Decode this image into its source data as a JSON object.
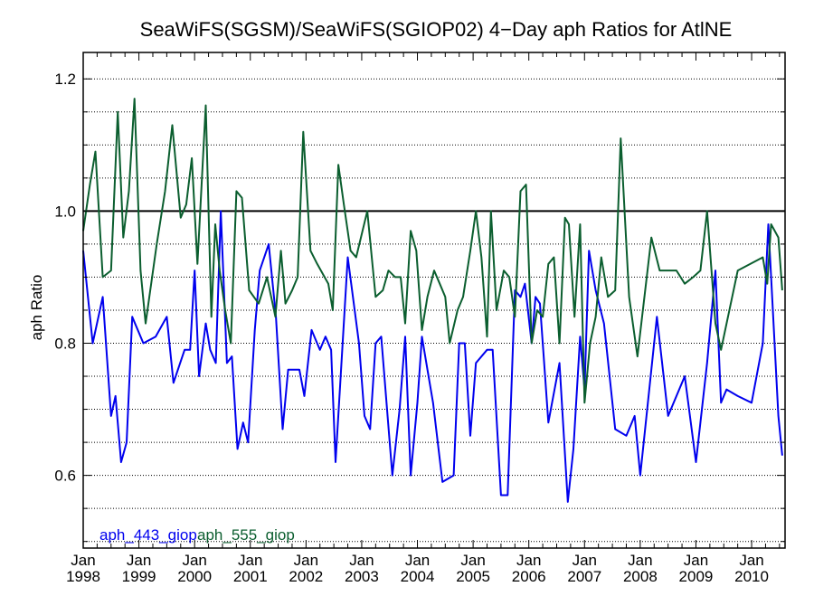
{
  "chart_data": {
    "type": "line",
    "title": "SeaWiFS(SGSM)/SeaWiFS(SGIOP02) 4−Day aph Ratios for AtlNE",
    "xlabel": "",
    "ylabel": "aph Ratio",
    "xlim": [
      1998.0,
      2010.6
    ],
    "ylim": [
      0.49,
      1.24
    ],
    "y_major_ticks": [
      0.6,
      0.8,
      1.0,
      1.2
    ],
    "y_grid_step": 0.05,
    "reference_line": 1.0,
    "grid": true,
    "legend_position": "bottom-left",
    "x_ticks": [
      {
        "x": 1998,
        "month": "Jan",
        "year": "1998"
      },
      {
        "x": 1999,
        "month": "Jan",
        "year": "1999"
      },
      {
        "x": 2000,
        "month": "Jan",
        "year": "2000"
      },
      {
        "x": 2001,
        "month": "Jan",
        "year": "2001"
      },
      {
        "x": 2002,
        "month": "Jan",
        "year": "2002"
      },
      {
        "x": 2003,
        "month": "Jan",
        "year": "2003"
      },
      {
        "x": 2004,
        "month": "Jan",
        "year": "2004"
      },
      {
        "x": 2005,
        "month": "Jan",
        "year": "2005"
      },
      {
        "x": 2006,
        "month": "Jan",
        "year": "2006"
      },
      {
        "x": 2007,
        "month": "Jan",
        "year": "2007"
      },
      {
        "x": 2008,
        "month": "Jan",
        "year": "2008"
      },
      {
        "x": 2009,
        "month": "Jan",
        "year": "2009"
      },
      {
        "x": 2010,
        "month": "Jan",
        "year": "2010"
      }
    ],
    "series": [
      {
        "name": "aph_443_giop",
        "color": "#0000ee",
        "points": [
          [
            1998.0,
            0.94
          ],
          [
            1998.17,
            0.8
          ],
          [
            1998.35,
            0.87
          ],
          [
            1998.5,
            0.69
          ],
          [
            1998.58,
            0.72
          ],
          [
            1998.68,
            0.62
          ],
          [
            1998.78,
            0.65
          ],
          [
            1998.88,
            0.84
          ],
          [
            1999.08,
            0.8
          ],
          [
            1999.3,
            0.81
          ],
          [
            1999.5,
            0.84
          ],
          [
            1999.62,
            0.74
          ],
          [
            1999.82,
            0.79
          ],
          [
            1999.92,
            0.79
          ],
          [
            2000.0,
            0.91
          ],
          [
            2000.08,
            0.75
          ],
          [
            2000.2,
            0.83
          ],
          [
            2000.28,
            0.79
          ],
          [
            2000.38,
            0.77
          ],
          [
            2000.47,
            1.0
          ],
          [
            2000.58,
            0.77
          ],
          [
            2000.67,
            0.78
          ],
          [
            2000.77,
            0.64
          ],
          [
            2000.87,
            0.68
          ],
          [
            2000.96,
            0.65
          ],
          [
            2001.08,
            0.82
          ],
          [
            2001.17,
            0.91
          ],
          [
            2001.33,
            0.95
          ],
          [
            2001.46,
            0.84
          ],
          [
            2001.58,
            0.67
          ],
          [
            2001.68,
            0.76
          ],
          [
            2001.88,
            0.76
          ],
          [
            2001.97,
            0.72
          ],
          [
            2002.1,
            0.82
          ],
          [
            2002.25,
            0.79
          ],
          [
            2002.35,
            0.81
          ],
          [
            2002.45,
            0.79
          ],
          [
            2002.53,
            0.62
          ],
          [
            2002.75,
            0.93
          ],
          [
            2002.95,
            0.8
          ],
          [
            2003.05,
            0.69
          ],
          [
            2003.15,
            0.67
          ],
          [
            2003.25,
            0.8
          ],
          [
            2003.35,
            0.81
          ],
          [
            2003.55,
            0.6
          ],
          [
            2003.68,
            0.7
          ],
          [
            2003.78,
            0.81
          ],
          [
            2003.88,
            0.6
          ],
          [
            2004.0,
            0.71
          ],
          [
            2004.08,
            0.81
          ],
          [
            2004.18,
            0.76
          ],
          [
            2004.28,
            0.71
          ],
          [
            2004.45,
            0.59
          ],
          [
            2004.65,
            0.6
          ],
          [
            2004.75,
            0.8
          ],
          [
            2004.85,
            0.8
          ],
          [
            2004.95,
            0.66
          ],
          [
            2005.05,
            0.77
          ],
          [
            2005.25,
            0.79
          ],
          [
            2005.35,
            0.79
          ],
          [
            2005.5,
            0.57
          ],
          [
            2005.62,
            0.57
          ],
          [
            2005.75,
            0.88
          ],
          [
            2005.85,
            0.87
          ],
          [
            2005.93,
            0.89
          ],
          [
            2006.05,
            0.8
          ],
          [
            2006.12,
            0.87
          ],
          [
            2006.2,
            0.86
          ],
          [
            2006.35,
            0.68
          ],
          [
            2006.55,
            0.77
          ],
          [
            2006.7,
            0.56
          ],
          [
            2006.8,
            0.64
          ],
          [
            2006.92,
            0.81
          ],
          [
            2007.0,
            0.73
          ],
          [
            2007.08,
            0.94
          ],
          [
            2007.2,
            0.88
          ],
          [
            2007.35,
            0.83
          ],
          [
            2007.55,
            0.67
          ],
          [
            2007.75,
            0.66
          ],
          [
            2007.9,
            0.69
          ],
          [
            2008.0,
            0.6
          ],
          [
            2008.3,
            0.84
          ],
          [
            2008.5,
            0.69
          ],
          [
            2008.8,
            0.75
          ],
          [
            2009.0,
            0.62
          ],
          [
            2009.2,
            0.77
          ],
          [
            2009.35,
            0.91
          ],
          [
            2009.45,
            0.71
          ],
          [
            2009.55,
            0.73
          ],
          [
            2009.75,
            0.72
          ],
          [
            2010.0,
            0.71
          ],
          [
            2010.2,
            0.8
          ],
          [
            2010.3,
            0.98
          ],
          [
            2010.35,
            0.9
          ],
          [
            2010.48,
            0.69
          ],
          [
            2010.55,
            0.63
          ]
        ]
      },
      {
        "name": "aph_555_giop",
        "color": "#0b5e2f",
        "points": [
          [
            1998.0,
            0.97
          ],
          [
            1998.12,
            1.04
          ],
          [
            1998.22,
            1.09
          ],
          [
            1998.35,
            0.9
          ],
          [
            1998.5,
            0.91
          ],
          [
            1998.62,
            1.15
          ],
          [
            1998.72,
            0.96
          ],
          [
            1998.82,
            1.03
          ],
          [
            1998.92,
            1.17
          ],
          [
            1999.03,
            0.91
          ],
          [
            1999.12,
            0.83
          ],
          [
            1999.32,
            0.95
          ],
          [
            1999.47,
            1.03
          ],
          [
            1999.6,
            1.13
          ],
          [
            1999.75,
            0.99
          ],
          [
            1999.85,
            1.01
          ],
          [
            1999.95,
            1.08
          ],
          [
            2000.05,
            0.92
          ],
          [
            2000.2,
            1.16
          ],
          [
            2000.3,
            0.84
          ],
          [
            2000.37,
            0.98
          ],
          [
            2000.45,
            0.91
          ],
          [
            2000.55,
            0.85
          ],
          [
            2000.65,
            0.8
          ],
          [
            2000.75,
            1.03
          ],
          [
            2000.85,
            1.02
          ],
          [
            2000.98,
            0.88
          ],
          [
            2001.15,
            0.86
          ],
          [
            2001.3,
            0.9
          ],
          [
            2001.45,
            0.84
          ],
          [
            2001.55,
            0.94
          ],
          [
            2001.63,
            0.86
          ],
          [
            2001.75,
            0.88
          ],
          [
            2001.85,
            0.9
          ],
          [
            2001.95,
            1.12
          ],
          [
            2002.08,
            0.94
          ],
          [
            2002.2,
            0.92
          ],
          [
            2002.4,
            0.89
          ],
          [
            2002.48,
            0.85
          ],
          [
            2002.58,
            1.07
          ],
          [
            2002.68,
            1.01
          ],
          [
            2002.8,
            0.94
          ],
          [
            2002.9,
            0.93
          ],
          [
            2003.1,
            1.0
          ],
          [
            2003.25,
            0.87
          ],
          [
            2003.38,
            0.88
          ],
          [
            2003.48,
            0.91
          ],
          [
            2003.6,
            0.9
          ],
          [
            2003.7,
            0.9
          ],
          [
            2003.78,
            0.83
          ],
          [
            2003.88,
            0.97
          ],
          [
            2003.98,
            0.94
          ],
          [
            2004.08,
            0.82
          ],
          [
            2004.18,
            0.87
          ],
          [
            2004.3,
            0.91
          ],
          [
            2004.4,
            0.89
          ],
          [
            2004.5,
            0.87
          ],
          [
            2004.58,
            0.8
          ],
          [
            2004.72,
            0.85
          ],
          [
            2004.82,
            0.87
          ],
          [
            2004.95,
            0.94
          ],
          [
            2005.05,
            1.0
          ],
          [
            2005.15,
            0.93
          ],
          [
            2005.25,
            0.81
          ],
          [
            2005.32,
            1.0
          ],
          [
            2005.42,
            0.85
          ],
          [
            2005.55,
            0.91
          ],
          [
            2005.65,
            0.9
          ],
          [
            2005.75,
            0.84
          ],
          [
            2005.85,
            1.03
          ],
          [
            2005.95,
            1.04
          ],
          [
            2006.05,
            0.8
          ],
          [
            2006.15,
            0.85
          ],
          [
            2006.25,
            0.84
          ],
          [
            2006.35,
            0.92
          ],
          [
            2006.45,
            0.93
          ],
          [
            2006.55,
            0.8
          ],
          [
            2006.65,
            0.99
          ],
          [
            2006.72,
            0.98
          ],
          [
            2006.82,
            0.84
          ],
          [
            2006.92,
            0.98
          ],
          [
            2007.0,
            0.71
          ],
          [
            2007.1,
            0.8
          ],
          [
            2007.2,
            0.84
          ],
          [
            2007.3,
            0.93
          ],
          [
            2007.42,
            0.87
          ],
          [
            2007.55,
            0.88
          ],
          [
            2007.65,
            1.11
          ],
          [
            2007.8,
            0.87
          ],
          [
            2007.95,
            0.78
          ],
          [
            2008.2,
            0.96
          ],
          [
            2008.35,
            0.91
          ],
          [
            2008.55,
            0.91
          ],
          [
            2008.65,
            0.91
          ],
          [
            2008.8,
            0.89
          ],
          [
            2008.95,
            0.9
          ],
          [
            2009.08,
            0.91
          ],
          [
            2009.2,
            1.0
          ],
          [
            2009.35,
            0.83
          ],
          [
            2009.45,
            0.79
          ],
          [
            2009.75,
            0.91
          ],
          [
            2010.2,
            0.93
          ],
          [
            2010.28,
            0.89
          ],
          [
            2010.35,
            0.98
          ],
          [
            2010.48,
            0.96
          ],
          [
            2010.55,
            0.88
          ]
        ]
      }
    ]
  }
}
